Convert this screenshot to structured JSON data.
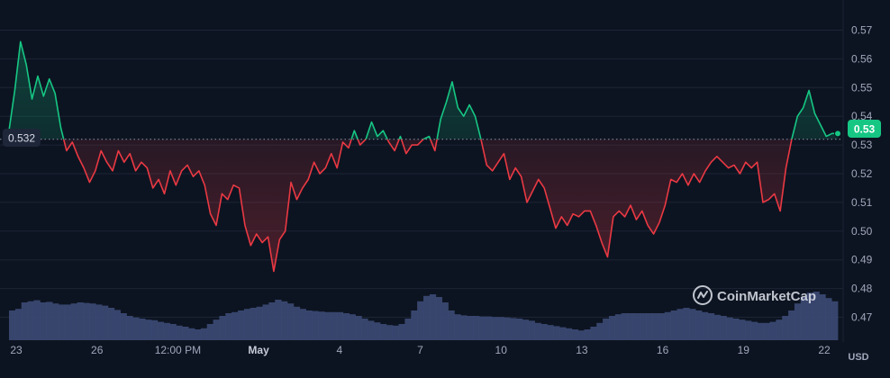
{
  "chart_data": {
    "type": "line",
    "currency_label": "USD",
    "watermark": "CoinMarketCap",
    "reference_value": 0.532,
    "reference_label": "0.532",
    "current_value": 0.53,
    "current_label": "0.53",
    "ylim": [
      0.462,
      0.578
    ],
    "y_ticks": [
      "0.57",
      "0.56",
      "0.55",
      "0.54",
      "0.53",
      "0.52",
      "0.51",
      "0.50",
      "0.49",
      "0.48",
      "0.47"
    ],
    "x_ticks": [
      {
        "label": "23",
        "bold": false
      },
      {
        "label": "26",
        "bold": false
      },
      {
        "label": "12:00 PM",
        "bold": false
      },
      {
        "label": "May",
        "bold": true
      },
      {
        "label": "4",
        "bold": false
      },
      {
        "label": "7",
        "bold": false
      },
      {
        "label": "10",
        "bold": false
      },
      {
        "label": "13",
        "bold": false
      },
      {
        "label": "16",
        "bold": false
      },
      {
        "label": "19",
        "bold": false
      },
      {
        "label": "22",
        "bold": false
      }
    ],
    "colors": {
      "up": "#16c784",
      "down": "#ea3943",
      "volume": "#3c4a75",
      "background": "#0d1421"
    },
    "series": [
      {
        "values": [
          0.535,
          0.549,
          0.566,
          0.558,
          0.546,
          0.554,
          0.547,
          0.553,
          0.548,
          0.536,
          0.528,
          0.531,
          0.526,
          0.522,
          0.517,
          0.521,
          0.528,
          0.524,
          0.521,
          0.528,
          0.524,
          0.527,
          0.521,
          0.524,
          0.522,
          0.515,
          0.518,
          0.513,
          0.521,
          0.516,
          0.521,
          0.523,
          0.519,
          0.521,
          0.516,
          0.506,
          0.502,
          0.513,
          0.511,
          0.516,
          0.515,
          0.502,
          0.495,
          0.499,
          0.496,
          0.498,
          0.486,
          0.497,
          0.5,
          0.517,
          0.511,
          0.515,
          0.518,
          0.524,
          0.52,
          0.522,
          0.527,
          0.522,
          0.531,
          0.529,
          0.535,
          0.53,
          0.532,
          0.538,
          0.533,
          0.535,
          0.531,
          0.528,
          0.533,
          0.527,
          0.53,
          0.53,
          0.532,
          0.533,
          0.528,
          0.539,
          0.545,
          0.552,
          0.543,
          0.54,
          0.544,
          0.54,
          0.532,
          0.523,
          0.521,
          0.524,
          0.527,
          0.518,
          0.522,
          0.519,
          0.51,
          0.514,
          0.518,
          0.515,
          0.508,
          0.501,
          0.505,
          0.502,
          0.506,
          0.505,
          0.507,
          0.507,
          0.502,
          0.496,
          0.491,
          0.505,
          0.507,
          0.505,
          0.509,
          0.504,
          0.507,
          0.502,
          0.499,
          0.503,
          0.509,
          0.518,
          0.517,
          0.52,
          0.516,
          0.52,
          0.517,
          0.521,
          0.524,
          0.526,
          0.524,
          0.522,
          0.523,
          0.52,
          0.524,
          0.522,
          0.524,
          0.51,
          0.511,
          0.513,
          0.507,
          0.522,
          0.532,
          0.54,
          0.543,
          0.549,
          0.541,
          0.537,
          0.533,
          0.534,
          0.534
        ]
      }
    ],
    "volume": [
      0.55,
      0.58,
      0.7,
      0.72,
      0.74,
      0.7,
      0.71,
      0.68,
      0.66,
      0.66,
      0.68,
      0.7,
      0.69,
      0.68,
      0.66,
      0.64,
      0.6,
      0.56,
      0.5,
      0.45,
      0.42,
      0.4,
      0.38,
      0.37,
      0.34,
      0.32,
      0.3,
      0.27,
      0.25,
      0.22,
      0.2,
      0.22,
      0.3,
      0.38,
      0.45,
      0.5,
      0.52,
      0.55,
      0.58,
      0.6,
      0.62,
      0.66,
      0.7,
      0.75,
      0.72,
      0.68,
      0.62,
      0.58,
      0.55,
      0.54,
      0.53,
      0.52,
      0.52,
      0.52,
      0.5,
      0.48,
      0.45,
      0.4,
      0.36,
      0.33,
      0.3,
      0.28,
      0.27,
      0.3,
      0.4,
      0.55,
      0.72,
      0.82,
      0.85,
      0.8,
      0.7,
      0.55,
      0.48,
      0.46,
      0.45,
      0.45,
      0.44,
      0.44,
      0.43,
      0.43,
      0.42,
      0.41,
      0.4,
      0.38,
      0.36,
      0.32,
      0.3,
      0.28,
      0.26,
      0.24,
      0.22,
      0.2,
      0.18,
      0.2,
      0.25,
      0.32,
      0.4,
      0.45,
      0.48,
      0.5,
      0.5,
      0.5,
      0.5,
      0.5,
      0.5,
      0.5,
      0.52,
      0.55,
      0.58,
      0.6,
      0.58,
      0.55,
      0.52,
      0.5,
      0.47,
      0.45,
      0.42,
      0.4,
      0.38,
      0.36,
      0.34,
      0.32,
      0.32,
      0.34,
      0.38,
      0.45,
      0.55,
      0.68,
      0.8,
      0.88,
      0.9,
      0.85,
      0.78,
      0.72
    ]
  }
}
